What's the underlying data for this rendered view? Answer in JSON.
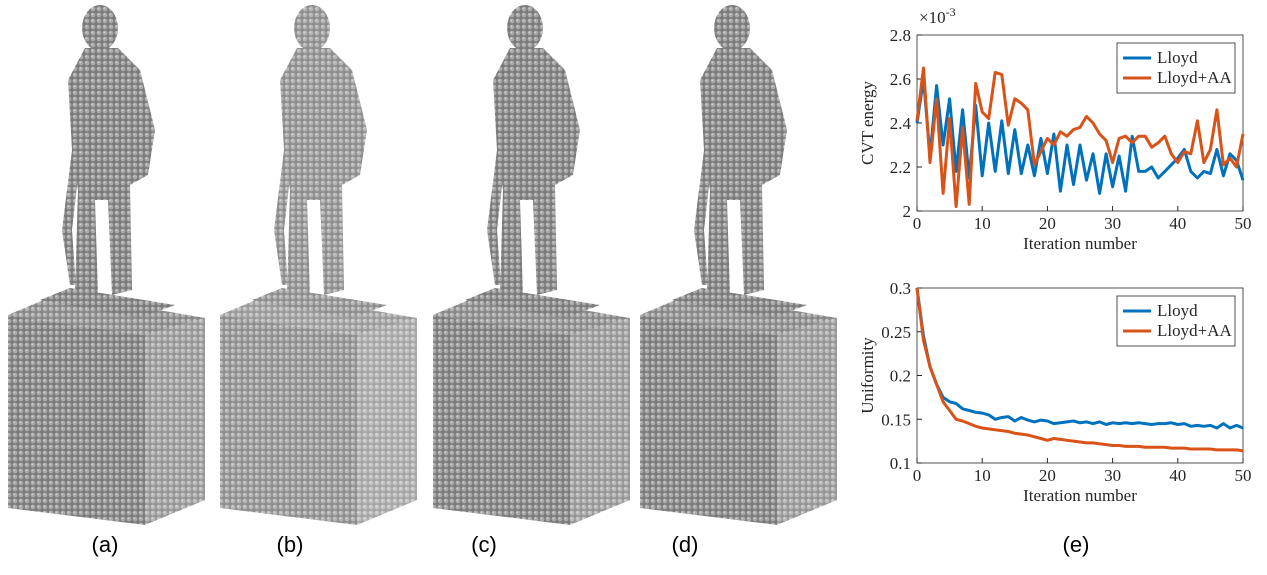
{
  "panel_labels": [
    "(a)",
    "(b)",
    "(c)",
    "(d)",
    "(e)"
  ],
  "chart_data": [
    {
      "type": "line",
      "ylabel": "CVT energy",
      "xlabel": "Iteration number",
      "y_multiplier": {
        "base": "×10",
        "exponent": "-3"
      },
      "xlim": [
        0,
        50
      ],
      "xticks": [
        0,
        10,
        20,
        30,
        40,
        50
      ],
      "ylim": [
        2,
        2.8
      ],
      "yticks": [
        2,
        2.2,
        2.4,
        2.6,
        2.8
      ],
      "legend": "upper right",
      "x": [
        0,
        1,
        2,
        3,
        4,
        5,
        6,
        7,
        8,
        9,
        10,
        11,
        12,
        13,
        14,
        15,
        16,
        17,
        18,
        19,
        20,
        21,
        22,
        23,
        24,
        25,
        26,
        27,
        28,
        29,
        30,
        31,
        32,
        33,
        34,
        35,
        36,
        37,
        38,
        39,
        40,
        41,
        42,
        43,
        44,
        45,
        46,
        47,
        48,
        49,
        50
      ],
      "series": [
        {
          "name": "Lloyd",
          "color": "#0072bd",
          "values": [
            2.4,
            2.6,
            2.25,
            2.57,
            2.3,
            2.51,
            2.18,
            2.46,
            2.15,
            2.48,
            2.16,
            2.4,
            2.18,
            2.41,
            2.17,
            2.37,
            2.17,
            2.3,
            2.16,
            2.33,
            2.17,
            2.35,
            2.09,
            2.3,
            2.12,
            2.3,
            2.14,
            2.26,
            2.08,
            2.26,
            2.11,
            2.25,
            2.09,
            2.34,
            2.18,
            2.18,
            2.2,
            2.15,
            2.18,
            2.21,
            2.24,
            2.28,
            2.18,
            2.15,
            2.18,
            2.17,
            2.28,
            2.16,
            2.26,
            2.23,
            2.14
          ]
        },
        {
          "name": "Lloyd+AA",
          "color": "#d95319",
          "values": [
            2.41,
            2.65,
            2.22,
            2.51,
            2.08,
            2.42,
            2.02,
            2.38,
            2.03,
            2.58,
            2.45,
            2.42,
            2.63,
            2.62,
            2.39,
            2.51,
            2.49,
            2.46,
            2.21,
            2.27,
            2.33,
            2.3,
            2.36,
            2.34,
            2.37,
            2.38,
            2.43,
            2.4,
            2.35,
            2.32,
            2.22,
            2.33,
            2.34,
            2.31,
            2.34,
            2.34,
            2.29,
            2.31,
            2.34,
            2.26,
            2.22,
            2.27,
            2.26,
            2.41,
            2.22,
            2.28,
            2.46,
            2.21,
            2.24,
            2.2,
            2.35
          ]
        }
      ]
    },
    {
      "type": "line",
      "ylabel": "Uniformity",
      "xlabel": "Iteration number",
      "xlim": [
        0,
        50
      ],
      "xticks": [
        0,
        10,
        20,
        30,
        40,
        50
      ],
      "ylim": [
        0.1,
        0.3
      ],
      "yticks": [
        0.1,
        0.15,
        0.2,
        0.25,
        0.3
      ],
      "legend": "upper right",
      "x": [
        0,
        1,
        2,
        3,
        4,
        5,
        6,
        7,
        8,
        9,
        10,
        11,
        12,
        13,
        14,
        15,
        16,
        17,
        18,
        19,
        20,
        21,
        22,
        23,
        24,
        25,
        26,
        27,
        28,
        29,
        30,
        31,
        32,
        33,
        34,
        35,
        36,
        37,
        38,
        39,
        40,
        41,
        42,
        43,
        44,
        45,
        46,
        47,
        48,
        49,
        50
      ],
      "series": [
        {
          "name": "Lloyd",
          "color": "#0072bd",
          "values": [
            0.3,
            0.245,
            0.21,
            0.19,
            0.175,
            0.17,
            0.168,
            0.162,
            0.16,
            0.158,
            0.157,
            0.155,
            0.15,
            0.152,
            0.153,
            0.148,
            0.152,
            0.149,
            0.147,
            0.149,
            0.148,
            0.145,
            0.146,
            0.147,
            0.148,
            0.146,
            0.147,
            0.145,
            0.147,
            0.144,
            0.146,
            0.145,
            0.146,
            0.145,
            0.146,
            0.145,
            0.144,
            0.145,
            0.145,
            0.146,
            0.144,
            0.145,
            0.142,
            0.143,
            0.142,
            0.143,
            0.14,
            0.145,
            0.14,
            0.143,
            0.14
          ]
        },
        {
          "name": "Lloyd+AA",
          "color": "#d95319",
          "values": [
            0.3,
            0.24,
            0.21,
            0.19,
            0.17,
            0.16,
            0.15,
            0.148,
            0.145,
            0.142,
            0.14,
            0.139,
            0.138,
            0.137,
            0.136,
            0.134,
            0.133,
            0.132,
            0.13,
            0.128,
            0.126,
            0.128,
            0.127,
            0.126,
            0.125,
            0.124,
            0.123,
            0.123,
            0.122,
            0.121,
            0.12,
            0.12,
            0.119,
            0.119,
            0.119,
            0.118,
            0.118,
            0.118,
            0.118,
            0.117,
            0.117,
            0.117,
            0.116,
            0.116,
            0.116,
            0.116,
            0.115,
            0.115,
            0.115,
            0.115,
            0.114
          ]
        }
      ]
    }
  ]
}
